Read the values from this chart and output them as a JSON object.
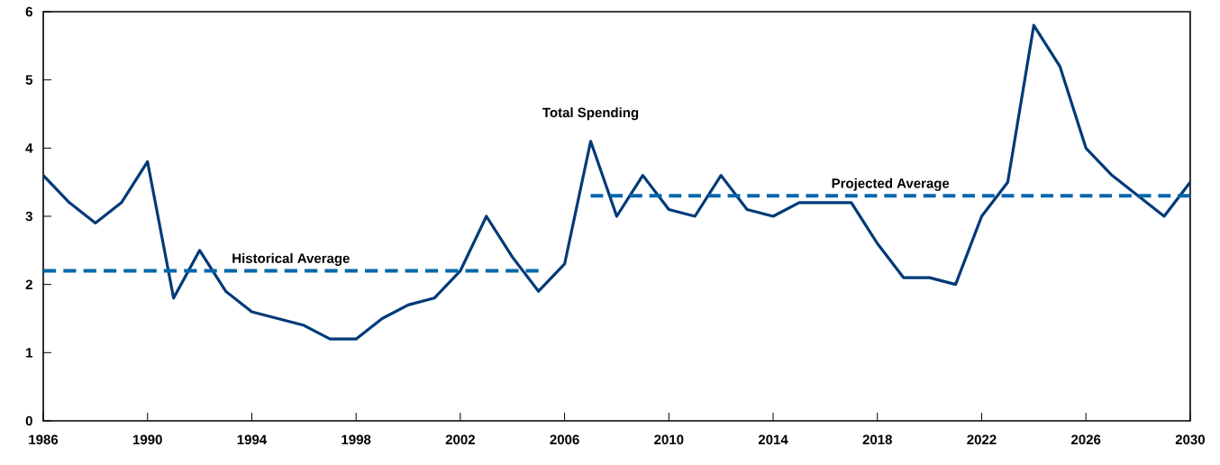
{
  "chart_data": {
    "type": "line",
    "xlim": [
      1986,
      2030
    ],
    "xticks": [
      1986,
      1990,
      1994,
      1998,
      2002,
      2006,
      2010,
      2014,
      2018,
      2022,
      2026,
      2030
    ],
    "ylim": [
      0,
      6
    ],
    "yticks": [
      0,
      1,
      2,
      3,
      4,
      5,
      6
    ],
    "grid": false,
    "legend": false,
    "marker": "none",
    "series": [
      {
        "name": "Total Spending",
        "color": "#003a78",
        "line_style": "solid",
        "x": [
          1986,
          1987,
          1988,
          1989,
          1990,
          1991,
          1992,
          1993,
          1994,
          1995,
          1996,
          1997,
          1998,
          1999,
          2000,
          2001,
          2002,
          2003,
          2004,
          2005,
          2006,
          2007,
          2008,
          2009,
          2010,
          2011,
          2012,
          2013,
          2014,
          2015,
          2016,
          2017,
          2018,
          2019,
          2020,
          2021,
          2022,
          2023,
          2024,
          2025,
          2026,
          2027,
          2028,
          2029,
          2030
        ],
        "values": [
          3.6,
          3.2,
          2.9,
          3.2,
          3.8,
          1.8,
          2.5,
          1.9,
          1.6,
          1.5,
          1.4,
          1.2,
          1.2,
          1.5,
          1.7,
          1.8,
          2.2,
          3.0,
          2.4,
          1.9,
          2.3,
          4.1,
          3.0,
          3.6,
          3.1,
          3.0,
          3.6,
          3.1,
          3.0,
          3.2,
          3.2,
          3.2,
          2.6,
          2.1,
          2.1,
          2.0,
          3.0,
          3.5,
          5.8,
          5.2,
          4.0,
          3.6,
          3.3,
          3.0,
          3.5
        ]
      },
      {
        "name": "Historical Average",
        "color": "#0066aa",
        "line_style": "dashed",
        "x": [
          1986,
          2005
        ],
        "values": [
          2.2,
          2.2
        ]
      },
      {
        "name": "Projected Average",
        "color": "#0066aa",
        "line_style": "dashed",
        "x": [
          2007,
          2030
        ],
        "values": [
          3.3,
          3.3
        ]
      }
    ]
  }
}
